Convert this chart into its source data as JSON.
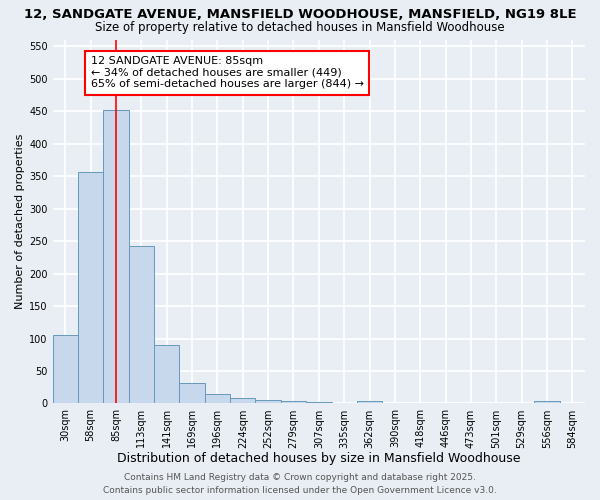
{
  "title": "12, SANDGATE AVENUE, MANSFIELD WOODHOUSE, MANSFIELD, NG19 8LE",
  "subtitle": "Size of property relative to detached houses in Mansfield Woodhouse",
  "xlabel": "Distribution of detached houses by size in Mansfield Woodhouse",
  "ylabel": "Number of detached properties",
  "categories": [
    "30sqm",
    "58sqm",
    "85sqm",
    "113sqm",
    "141sqm",
    "169sqm",
    "196sqm",
    "224sqm",
    "252sqm",
    "279sqm",
    "307sqm",
    "335sqm",
    "362sqm",
    "390sqm",
    "418sqm",
    "446sqm",
    "473sqm",
    "501sqm",
    "529sqm",
    "556sqm",
    "584sqm"
  ],
  "values": [
    105,
    357,
    452,
    243,
    90,
    31,
    15,
    9,
    5,
    4,
    3,
    0,
    4,
    0,
    0,
    0,
    0,
    0,
    0,
    4,
    0
  ],
  "bar_color": "#c8d8ec",
  "bar_edge_color": "#6699bb",
  "red_line_index": 2,
  "annotation_text": "12 SANDGATE AVENUE: 85sqm\n← 34% of detached houses are smaller (449)\n65% of semi-detached houses are larger (844) →",
  "annotation_box_facecolor": "white",
  "annotation_box_edgecolor": "red",
  "ylim": [
    0,
    560
  ],
  "yticks": [
    0,
    50,
    100,
    150,
    200,
    250,
    300,
    350,
    400,
    450,
    500,
    550
  ],
  "background_color": "#e8eef4",
  "grid_color": "white",
  "footer": "Contains HM Land Registry data © Crown copyright and database right 2025.\nContains public sector information licensed under the Open Government Licence v3.0.",
  "title_fontsize": 9.5,
  "subtitle_fontsize": 8.5,
  "xlabel_fontsize": 9,
  "ylabel_fontsize": 8,
  "tick_fontsize": 7,
  "annotation_fontsize": 8,
  "footer_fontsize": 6.5
}
